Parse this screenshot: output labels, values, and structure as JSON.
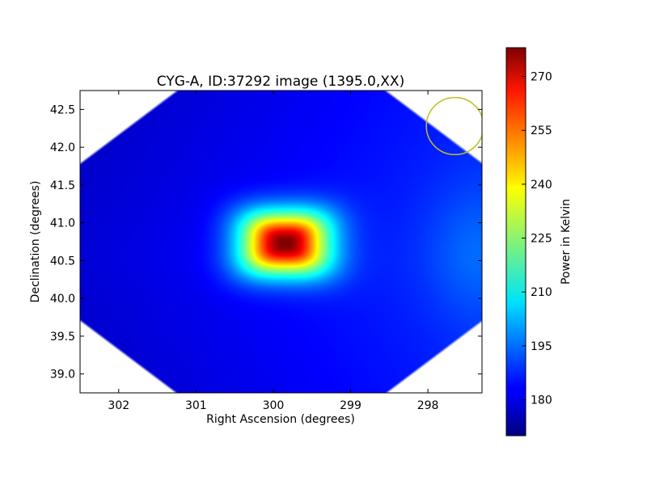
{
  "chart_data": {
    "type": "heatmap",
    "title": "CYG-A, ID:37292 image (1395.0,XX)",
    "xlabel": "Right Ascension (degrees)",
    "ylabel": "Declination (degrees)",
    "xlim": [
      302.5,
      297.3
    ],
    "ylim": [
      38.75,
      42.75
    ],
    "x_ticks": [
      302,
      301,
      300,
      299,
      298
    ],
    "x_tick_labels": [
      "302",
      "301",
      "300",
      "299",
      "298"
    ],
    "y_ticks": [
      39.0,
      39.5,
      40.0,
      40.5,
      41.0,
      41.5,
      42.0,
      42.5
    ],
    "y_tick_labels": [
      "39.0",
      "39.5",
      "40.0",
      "40.5",
      "41.0",
      "41.5",
      "42.0",
      "42.5"
    ],
    "grid": false,
    "colormap": "jet",
    "colorbar": {
      "label": "Power in Kelvin",
      "range": [
        170,
        278
      ],
      "ticks": [
        180,
        195,
        210,
        225,
        240,
        255,
        270
      ],
      "tick_labels": [
        "180",
        "195",
        "210",
        "225",
        "240",
        "255",
        "270"
      ]
    },
    "sources": [
      {
        "ra": 299.85,
        "dec": 40.73,
        "peak": 277,
        "sigma_ra": 0.52,
        "sigma_dec": 0.38
      }
    ],
    "background": {
      "min": 172,
      "max": 190
    },
    "beam_marker": {
      "ra": 297.65,
      "dec": 42.28,
      "radius_deg": 0.37,
      "color": "#bfbf20"
    }
  }
}
